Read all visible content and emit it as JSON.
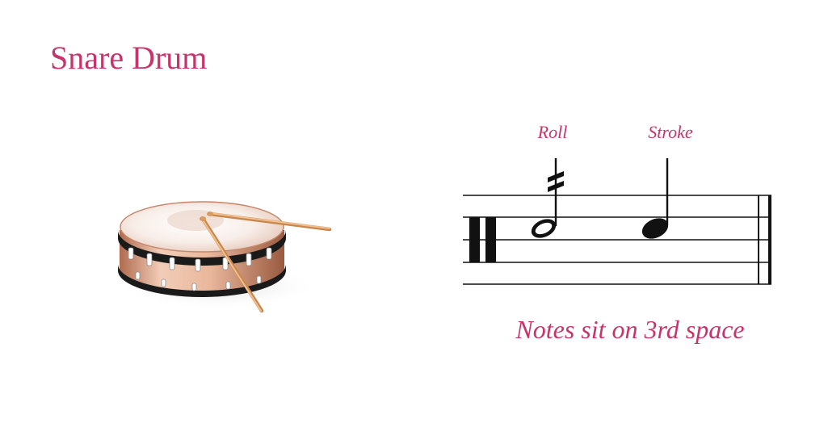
{
  "colors": {
    "accent": "#c7336a",
    "staff_ink": "#111111",
    "drum_shell_light": "#f4d6c4",
    "drum_shell_dark": "#9a5a40",
    "drum_head": "#f7ece6",
    "drum_hoop": "#1a1a1a",
    "stick": "#e2a86a"
  },
  "title": "Snare Drum",
  "illustration": {
    "icon": "snare-drum-with-sticks-icon"
  },
  "staff": {
    "clef_icon": "percussion-clef-icon",
    "notes": [
      {
        "label": "Roll",
        "type": "half-note-with-tremolo"
      },
      {
        "label": "Stroke",
        "type": "quarter-note"
      }
    ]
  },
  "caption": "Notes sit on 3rd space"
}
